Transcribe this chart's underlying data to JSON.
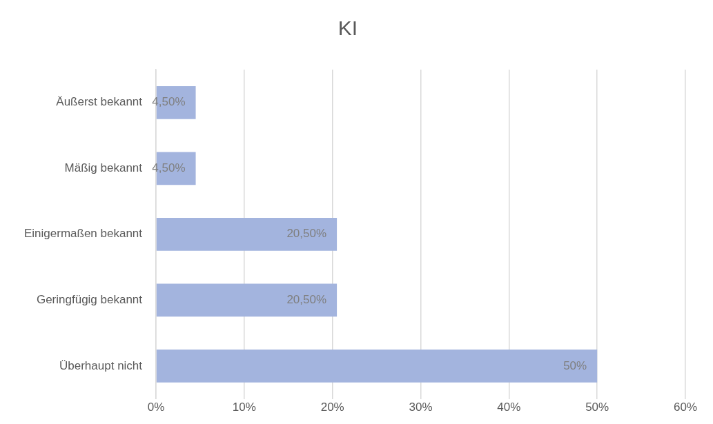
{
  "chart_data": {
    "type": "bar",
    "orientation": "horizontal",
    "title": "KI",
    "categories": [
      "Äußerst bekannt",
      "Mäßig bekannt",
      "Einigermaßen bekannt",
      "Geringfügig bekannt",
      "Überhaupt nicht"
    ],
    "values": [
      4.5,
      4.5,
      20.5,
      20.5,
      50
    ],
    "value_labels": [
      "4,50%",
      "4,50%",
      "20,50%",
      "20,50%",
      "50%"
    ],
    "color": "#a3b4de",
    "xlim": [
      0,
      60
    ],
    "xticks": [
      {
        "value": 0,
        "label": "0%"
      },
      {
        "value": 10,
        "label": "10%"
      },
      {
        "value": 20,
        "label": "20%"
      },
      {
        "value": 30,
        "label": "30%"
      },
      {
        "value": 40,
        "label": "40%"
      },
      {
        "value": 50,
        "label": "50%"
      },
      {
        "value": 60,
        "label": "60%"
      }
    ],
    "grid": "x",
    "legend": false
  }
}
